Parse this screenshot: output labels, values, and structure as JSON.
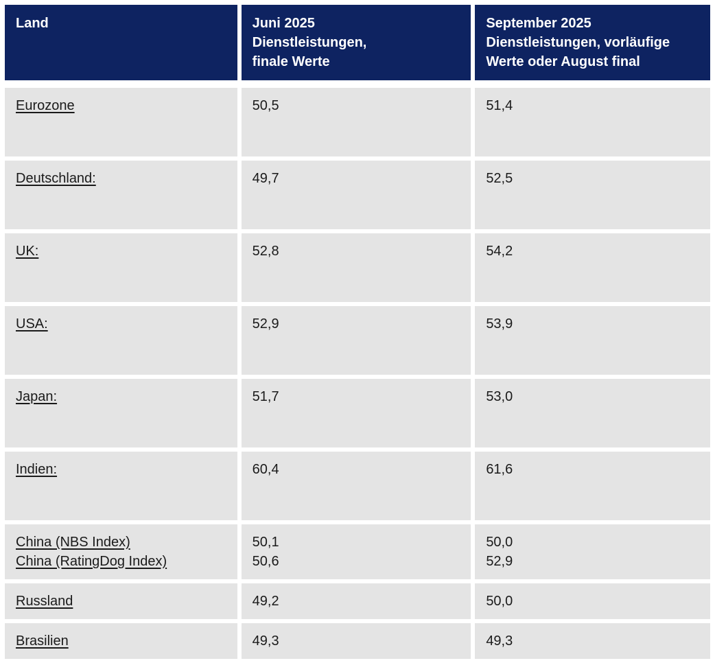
{
  "colors": {
    "header_bg": "#0e2361",
    "row_bg": "#e4e4e4"
  },
  "table": {
    "header": {
      "col1": {
        "line1": "Land"
      },
      "col2": {
        "line1": "Juni 2025",
        "line2": "Dienstleistungen,",
        "line3": "finale Werte"
      },
      "col3": {
        "line1": "September 2025",
        "line2": "Dienstleistungen, vorläufige",
        "line3": "Werte oder August final"
      }
    },
    "rows": [
      {
        "land": "Eurozone",
        "juni": "50,5",
        "sep": "51,4"
      },
      {
        "land": "Deutschland:",
        "juni": "49,7",
        "sep": "52,5"
      },
      {
        "land": "UK:",
        "juni": "52,8",
        "sep": "54,2"
      },
      {
        "land": "USA:",
        "juni": "52,9",
        "sep": "53,9"
      },
      {
        "land": "Japan:",
        "juni": "51,7",
        "sep": "53,0"
      },
      {
        "land": "Indien:",
        "juni": "60,4",
        "sep": "61,6"
      },
      {
        "land": "China (NBS Index)",
        "land2": "China (RatingDog Index)",
        "juni": "50,1",
        "juni2": "50,6",
        "sep": "50,0",
        "sep2": "52,9"
      },
      {
        "land": "Russland",
        "juni": "49,2",
        "sep": "50,0"
      },
      {
        "land": "Brasilien",
        "juni": "49,3",
        "sep": "49,3"
      }
    ]
  }
}
